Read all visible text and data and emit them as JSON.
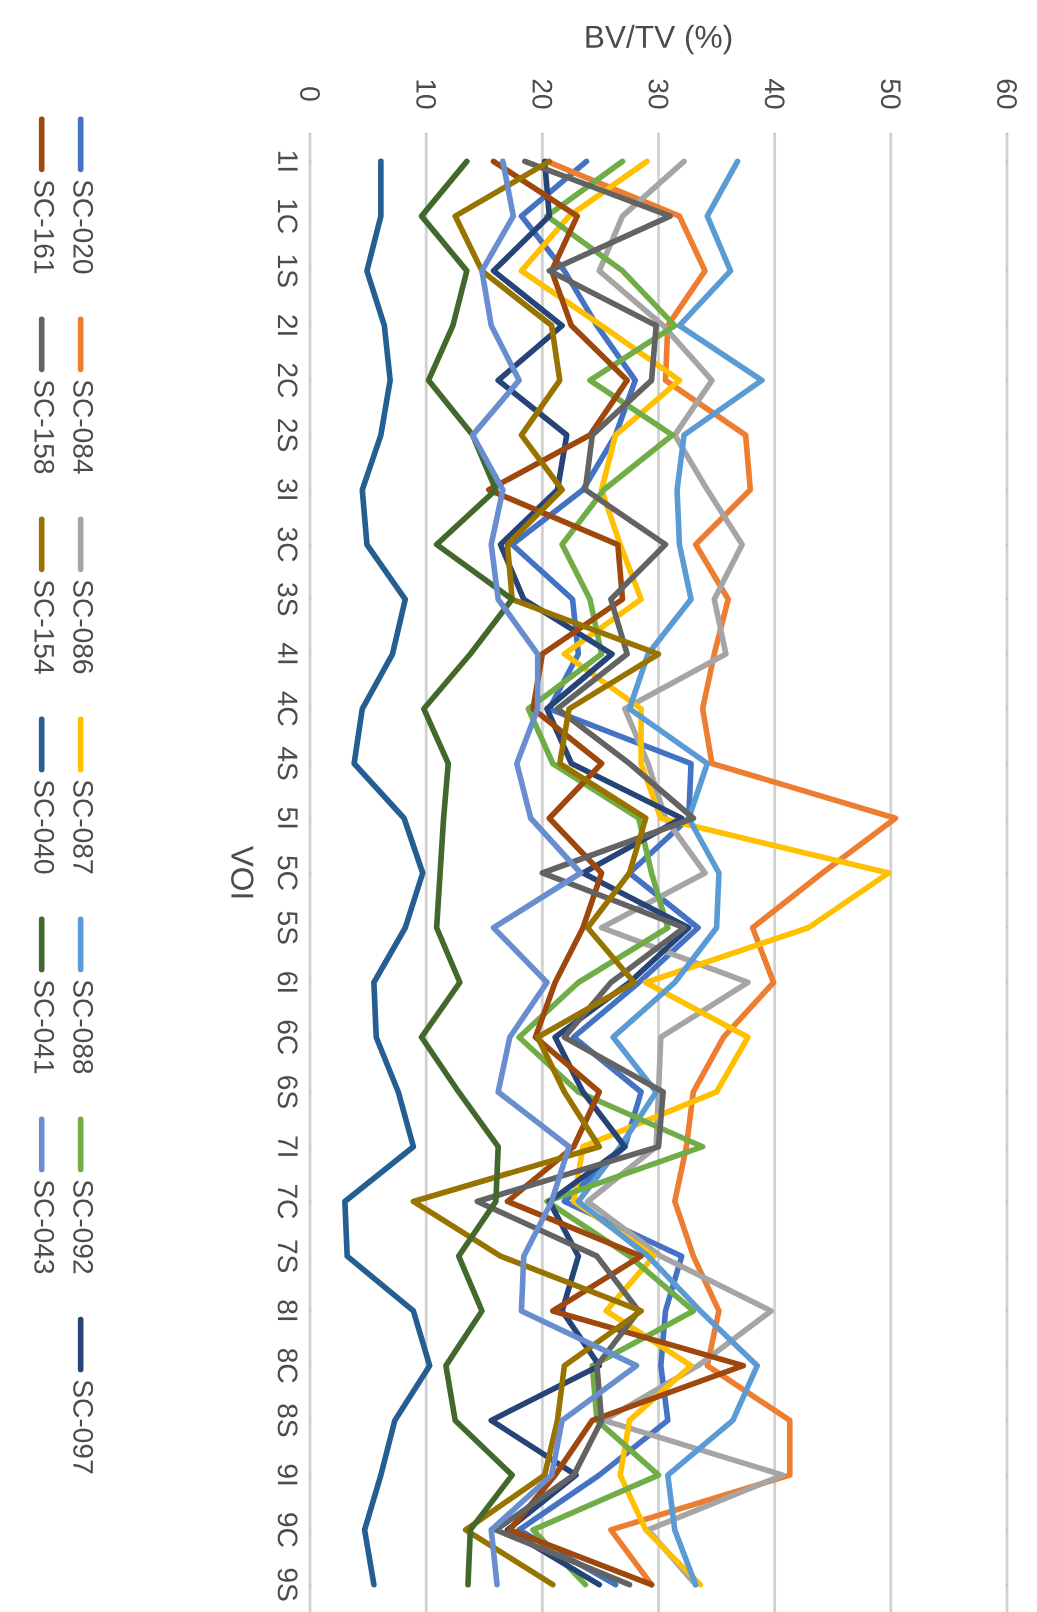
{
  "chart_data": {
    "type": "line",
    "orientation": "horizontal",
    "xlabel": "BV/TV (%)",
    "ylabel": "VOI",
    "categories": [
      "1I",
      "1C",
      "1S",
      "2I",
      "2C",
      "2S",
      "3I",
      "3C",
      "3S",
      "4I",
      "4C",
      "4S",
      "5I",
      "5C",
      "5S",
      "6I",
      "6C",
      "6S",
      "7I",
      "7C",
      "7S",
      "8I",
      "8C",
      "8S",
      "9I",
      "9C",
      "9S"
    ],
    "xlim": [
      0,
      60
    ],
    "xticks": [
      0,
      10,
      20,
      30,
      40,
      50,
      60
    ],
    "grid": "x",
    "legend": "left",
    "marker": "none",
    "line_style": "solid",
    "series": [
      {
        "name": "SC-020",
        "color": "#4472c4",
        "values": [
          23.8,
          18.2,
          21.9,
          24.7,
          28,
          26.3,
          23.5,
          17.4,
          22.6,
          23.1,
          20.6,
          32.8,
          32.6,
          27.5,
          33.4,
          28.3,
          22.7,
          28.5,
          27.1,
          21.9,
          32,
          30.6,
          30.2,
          30.8,
          24.9,
          18,
          26.3
        ]
      },
      {
        "name": "SC-084",
        "color": "#ed7d31",
        "values": [
          20.4,
          31.8,
          34,
          30.8,
          30.6,
          37.5,
          37.9,
          33.2,
          36,
          34.8,
          33.8,
          34.6,
          50.4,
          44.1,
          38.1,
          39.9,
          35.6,
          33,
          32.4,
          31.4,
          33,
          35.2,
          34.2,
          41.3,
          41.3,
          25.9,
          29.4
        ]
      },
      {
        "name": "SC-086",
        "color": "#a5a5a5",
        "values": [
          32.2,
          26.9,
          24.9,
          30.4,
          34.6,
          31.4,
          34.2,
          37.2,
          34.8,
          35.8,
          27.1,
          29.1,
          30.6,
          34,
          25.1,
          37.7,
          30.2,
          30,
          29.8,
          23.9,
          30.2,
          39.7,
          33.4,
          25.3,
          40.7,
          29.1,
          33.2
        ]
      },
      {
        "name": "SC-087",
        "color": "#ffc000",
        "values": [
          29,
          22.3,
          18.2,
          25.1,
          31.8,
          26.3,
          25.1,
          26.7,
          28.5,
          21.9,
          28.5,
          28.5,
          30.2,
          49.8,
          42.9,
          28.9,
          37.7,
          35,
          23.5,
          22.7,
          29.6,
          25.5,
          32.8,
          27.5,
          26.7,
          28.9,
          33.6
        ]
      },
      {
        "name": "SC-088",
        "color": "#5b9bd5",
        "values": [
          36.8,
          34.2,
          36.2,
          31.8,
          38.9,
          32.2,
          31.6,
          31.8,
          32.8,
          29.1,
          27.5,
          34.2,
          32.6,
          35.2,
          35,
          31.4,
          26.1,
          29.8,
          26.7,
          23.1,
          29.1,
          33.6,
          38.5,
          36.4,
          30.8,
          31.4,
          33.2
        ]
      },
      {
        "name": "SC-092",
        "color": "#70ad47",
        "values": [
          26.9,
          20.4,
          26.9,
          31.4,
          24.1,
          31.2,
          25.3,
          21.7,
          24.1,
          25.1,
          18.8,
          20.9,
          28.3,
          29.4,
          30.8,
          23.1,
          18,
          23.1,
          33.8,
          20.4,
          27.5,
          33,
          24.3,
          24.7,
          30,
          19.2,
          23.7
        ]
      },
      {
        "name": "SC-097",
        "color": "#264478",
        "values": [
          20.2,
          20.6,
          15.8,
          21.7,
          16.2,
          22.1,
          21.3,
          16.4,
          18.4,
          26,
          20.4,
          22.5,
          32,
          23.5,
          32.6,
          27.5,
          21.1,
          23.5,
          27.1,
          20.6,
          23.1,
          21.7,
          24.9,
          15.6,
          22.9,
          17,
          24.9
        ]
      },
      {
        "name": "SC-161",
        "color": "#9e480e",
        "values": [
          15.8,
          23,
          20.8,
          22.5,
          27.3,
          24.1,
          15.4,
          26.5,
          26.9,
          20,
          19.2,
          25.1,
          20.6,
          25.1,
          23.5,
          21.1,
          19.4,
          24.9,
          22.7,
          17,
          28.5,
          20.9,
          37.3,
          24.3,
          21.1,
          17.2,
          29.4
        ]
      },
      {
        "name": "SC-158",
        "color": "#636363",
        "values": [
          18.5,
          31,
          20.6,
          29.8,
          29.4,
          24.3,
          23.7,
          30.6,
          25.9,
          27.3,
          21.3,
          27.5,
          33,
          20,
          32.2,
          25.9,
          21.9,
          30.4,
          30,
          14.4,
          24.7,
          28.3,
          24.7,
          25.1,
          22.7,
          16,
          27.5
        ]
      },
      {
        "name": "SC-154",
        "color": "#997300",
        "values": [
          20.6,
          12.5,
          14.8,
          20.8,
          21.5,
          18.2,
          21.7,
          17,
          17.4,
          30,
          22.3,
          21.5,
          28.9,
          27.5,
          23.9,
          27.9,
          19.6,
          21.9,
          24.9,
          8.9,
          16.4,
          28.5,
          21.9,
          21.3,
          20.2,
          13.4,
          20.9
        ]
      },
      {
        "name": "SC-040",
        "color": "#255e91",
        "values": [
          6.1,
          6.1,
          4.9,
          6.4,
          6.9,
          6.1,
          4.5,
          4.9,
          8.2,
          7.1,
          4.5,
          3.8,
          8.1,
          9.7,
          8.2,
          5.5,
          5.7,
          7.6,
          8.9,
          3,
          3.2,
          8.9,
          10.3,
          7.3,
          6.1,
          4.7,
          5.5
        ]
      },
      {
        "name": "SC-041",
        "color": "#43682b",
        "values": [
          13.5,
          9.6,
          13.5,
          12.3,
          10.2,
          14,
          16,
          10.9,
          17.4,
          13.8,
          9.8,
          11.9,
          11.5,
          11.2,
          10.9,
          12.9,
          9.6,
          12.8,
          16.2,
          16,
          12.8,
          14.8,
          11.7,
          12.5,
          17.4,
          13.8,
          13.6
        ]
      },
      {
        "name": "SC-043",
        "color": "#698ed0",
        "values": [
          16.6,
          17.5,
          14.8,
          15.6,
          18,
          14,
          16.6,
          15.6,
          16.2,
          19.6,
          19.6,
          17.8,
          19,
          23.3,
          15.8,
          20.4,
          17.2,
          16.2,
          22.3,
          20.8,
          18.4,
          18.2,
          28.1,
          21.7,
          20.8,
          15.6,
          16.1
        ]
      }
    ]
  }
}
